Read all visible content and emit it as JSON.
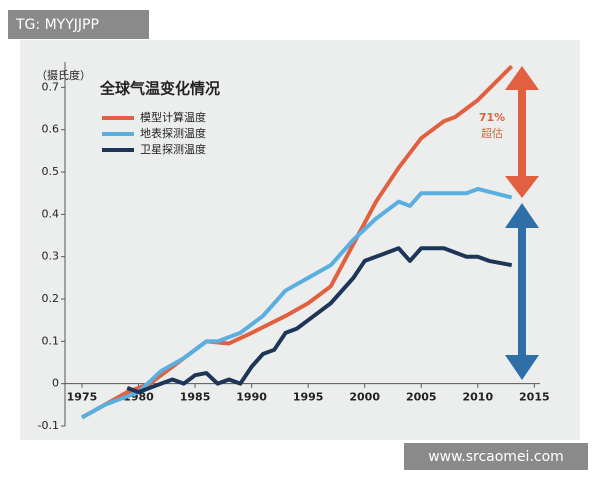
{
  "watermarks": [
    "TG: MYYJJPP",
    "www.srcaomei.com"
  ],
  "chart_data": {
    "type": "line",
    "title": "全球气温变化情况",
    "y_label": "（摄氏度）",
    "annotation": [
      "71%",
      "超估"
    ],
    "xlim": [
      1973.5,
      2015.5
    ],
    "xticks": [
      1975,
      1980,
      1985,
      1990,
      1995,
      2000,
      2005,
      2010,
      2015
    ],
    "ylim": [
      -0.1,
      0.76
    ],
    "yticks": [
      -0.1,
      0,
      0.1,
      0.2,
      0.3,
      0.4,
      0.5,
      0.6,
      0.7
    ],
    "series": [
      {
        "name": "模型计算温度",
        "color": "#e0603f",
        "x": [
          1975,
          1977,
          1979,
          1981,
          1983,
          1985,
          1986,
          1988,
          1990,
          1993,
          1995,
          1997,
          1999,
          2001,
          2003,
          2005,
          2007,
          2008,
          2010,
          2013
        ],
        "values": [
          -0.08,
          -0.05,
          -0.02,
          0.0,
          0.04,
          0.08,
          0.1,
          0.095,
          0.12,
          0.16,
          0.19,
          0.23,
          0.33,
          0.43,
          0.51,
          0.58,
          0.62,
          0.63,
          0.67,
          0.75
        ]
      },
      {
        "name": "地表探测温度",
        "color": "#5aaee0",
        "x": [
          1975,
          1977,
          1979,
          1980,
          1982,
          1984,
          1986,
          1987,
          1988,
          1989,
          1991,
          1993,
          1995,
          1997,
          1999,
          2001,
          2003,
          2004,
          2005,
          2009,
          2010,
          2013
        ],
        "values": [
          -0.08,
          -0.05,
          -0.03,
          -0.02,
          0.03,
          0.06,
          0.1,
          0.1,
          0.11,
          0.12,
          0.16,
          0.22,
          0.25,
          0.28,
          0.34,
          0.39,
          0.43,
          0.42,
          0.45,
          0.45,
          0.46,
          0.44
        ]
      },
      {
        "name": "卫星探测温度",
        "color": "#1d3557",
        "x": [
          1979,
          1980,
          1982,
          1983,
          1984,
          1985,
          1986,
          1987,
          1988,
          1989,
          1990,
          1991,
          1992,
          1993,
          1994,
          1995,
          1997,
          1999,
          2000,
          2002,
          2003,
          2004,
          2005,
          2007,
          2008,
          2009,
          2010,
          2011,
          2013
        ],
        "values": [
          -0.01,
          -0.02,
          0.0,
          0.01,
          0.0,
          0.02,
          0.025,
          0.0,
          0.01,
          0.0,
          0.04,
          0.07,
          0.08,
          0.12,
          0.13,
          0.15,
          0.19,
          0.25,
          0.29,
          0.31,
          0.32,
          0.29,
          0.32,
          0.32,
          0.31,
          0.3,
          0.3,
          0.29,
          0.28
        ]
      }
    ]
  }
}
